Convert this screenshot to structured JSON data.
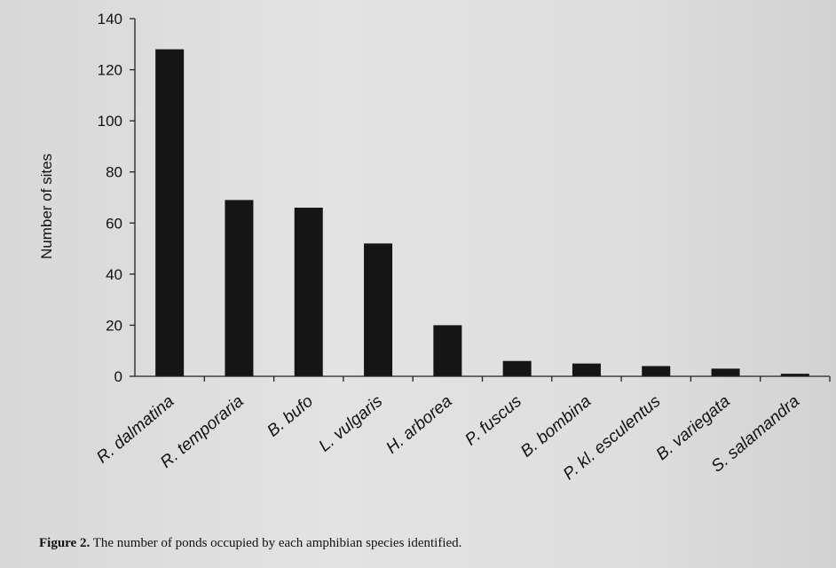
{
  "chart_data": {
    "type": "bar",
    "categories": [
      "R. dalmatina",
      "R. temporaria",
      "B. bufo",
      "L. vulgaris",
      "H. arborea",
      "P. fuscus",
      "B. bombina",
      "P. kl. esculentus",
      "B. variegata",
      "S. salamandra"
    ],
    "values": [
      128,
      69,
      66,
      52,
      20,
      6,
      5,
      4,
      3,
      1
    ],
    "ylabel": "Number of sites",
    "xlabel": "",
    "ylim": [
      0,
      140
    ],
    "yticks": [
      0,
      20,
      40,
      60,
      80,
      100,
      120,
      140
    ],
    "bar_color": "#151515",
    "grid": false
  },
  "caption": {
    "label": "Figure 2.",
    "text": "The number of ponds occupied by each amphibian species identified."
  }
}
